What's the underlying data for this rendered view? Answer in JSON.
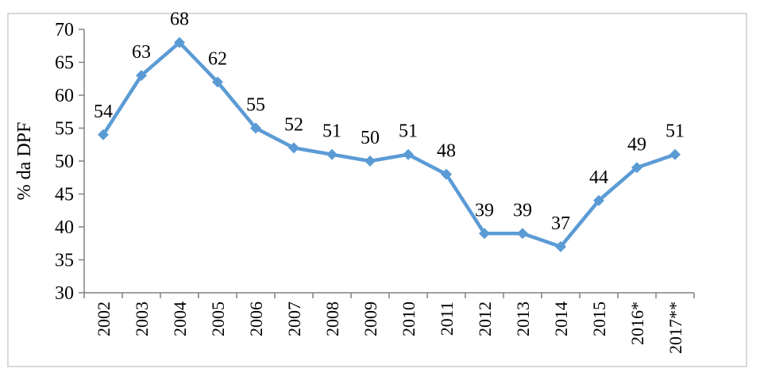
{
  "chart_data": {
    "type": "line",
    "title": "",
    "xlabel": "",
    "ylabel": "% da DPF",
    "categories": [
      "2002",
      "2003",
      "2004",
      "2005",
      "2006",
      "2007",
      "2008",
      "2009",
      "2010",
      "2011",
      "2012",
      "2013",
      "2014",
      "2015",
      "2016*",
      "2017**"
    ],
    "series": [
      {
        "name": "% da DPF",
        "values": [
          54,
          63,
          68,
          62,
          55,
          52,
          51,
          50,
          51,
          48,
          39,
          39,
          37,
          44,
          49,
          51
        ],
        "data_labels": [
          "54",
          "63",
          "68",
          "62",
          "55",
          "52",
          "51",
          "50",
          "51",
          "48",
          "39",
          "39",
          "37",
          "44",
          "49",
          "51"
        ]
      }
    ],
    "y_axis": {
      "min": 30,
      "max": 70,
      "step": 5,
      "tick_labels": [
        "30",
        "35",
        "40",
        "45",
        "50",
        "55",
        "60",
        "65",
        "70"
      ]
    },
    "legend": "none",
    "grid": "off",
    "marker": "diamond",
    "colors": {
      "series_line": "#5B9BD5",
      "axis": "#808080",
      "frame_border": "#D9D9D9",
      "label_text": "#000000"
    }
  }
}
